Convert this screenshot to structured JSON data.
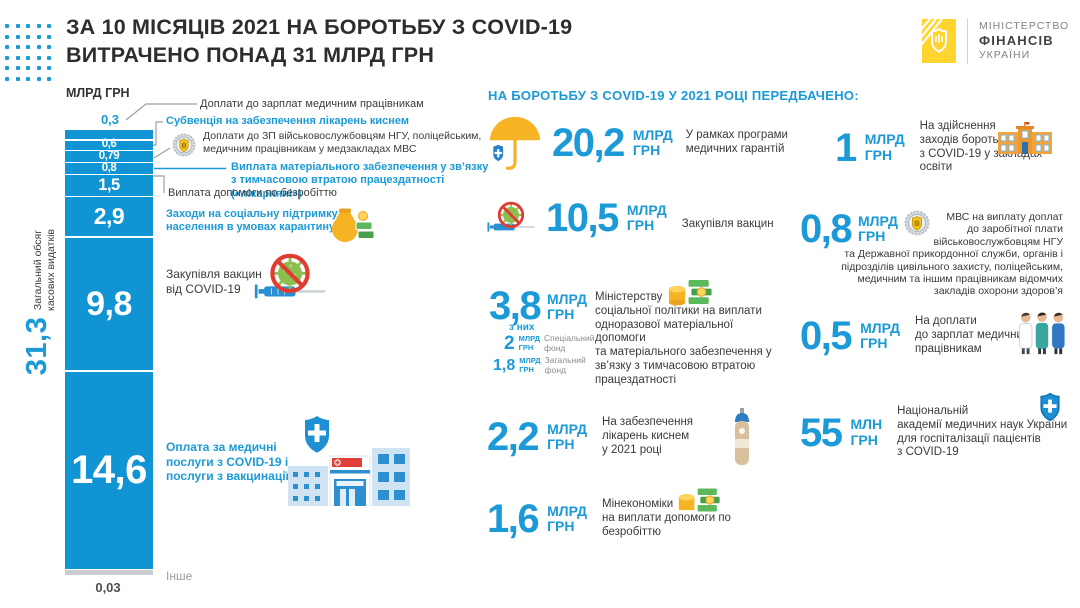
{
  "header": {
    "title": "ЗА 10 МІСЯЦІВ 2021 НА БОРОТЬБУ З COVID-19\nВИТРАЧЕНО ПОНАД 31 МЛРД ГРН",
    "logo": {
      "line1": "МІНІСТЕРСТВО",
      "line2": "ФІНАНСІВ",
      "line3": "УКРАЇНИ"
    }
  },
  "colors": {
    "accent": "#1b9ad7",
    "bar": "#1094d3",
    "red": "#e03c31",
    "yellow": "#f6b425",
    "gray_segment": "#c9cdd1"
  },
  "chart": {
    "unit": "МЛРД ГРН",
    "total_value": "31,3",
    "total_caption": "Загальний обсяг\nкасових видатків",
    "segments": [
      {
        "label": "0,3",
        "value": 0.3,
        "position": "above"
      },
      {
        "label": "0,6",
        "value": 0.6
      },
      {
        "label": "0,79",
        "value": 0.79
      },
      {
        "label": "0,8",
        "value": 0.8
      },
      {
        "label": "1,5",
        "value": 1.5
      },
      {
        "label": "2,9",
        "value": 2.9
      },
      {
        "label": "9,8",
        "value": 9.8
      },
      {
        "label": "14,6",
        "value": 14.6
      },
      {
        "label": "0,03",
        "value": 0.03,
        "position": "below",
        "color": "#c9cdd1"
      }
    ],
    "callouts": {
      "c1": "Доплати до зарплат медичним працівникам",
      "c2": "Субвенція на забезпечення лікарень киснем",
      "c3": "Доплати до ЗП військовослужбовцям НГУ, поліцейським,\nмедичним працівникам у медзакладах МВС",
      "c4": "Виплата матеріального забезпечення у зв’язку\nз тимчасовою втратою працездатності\n(«лікарняні»)",
      "c5": "Виплата допомоги по безробіттю",
      "c6": "Заходи на соціальну підтримку\nнаселення в умовах карантину",
      "c7": "Закупівля вакцин\nвід COVID-19",
      "c8": "Оплата за медичні\nпослуги з COVID-19 і\nпослуги з вакцинації",
      "c9": "Інше"
    }
  },
  "right": {
    "heading": "НА БОРОТЬБУ З COVID-19 У 2021 РОЦІ ПЕРЕДБАЧЕНО:"
  },
  "plans": [
    {
      "amount": "20,2",
      "unit": "МЛРД\nГРН",
      "desc": "У рамках програми\nмедичних гарантій"
    },
    {
      "amount": "10,5",
      "unit": "МЛРД\nГРН",
      "desc": "Закупівля вакцин"
    },
    {
      "amount": "3,8",
      "unit": "МЛРД\nГРН",
      "note": "з них",
      "funds": [
        {
          "amount": "2",
          "unit": "МЛРД\nГРН",
          "label": "Спеціальний\nфонд"
        },
        {
          "amount": "1,8",
          "unit": "МЛРД\nГРН",
          "label": "Загальний\nфонд"
        }
      ],
      "desc": "Міністерству\nсоціальної політики на виплати\nодноразової матеріальної допомоги\nта матеріального забезпечення у\nзв’язку з тимчасовою втратою\nпрацездатності"
    },
    {
      "amount": "2,2",
      "unit": "МЛРД\nГРН",
      "desc": "На забезпечення\nлікарень киснем\nу 2021 році"
    },
    {
      "amount": "1,6",
      "unit": "МЛРД\nГРН",
      "desc": "Мінекономіки\nна виплати допомоги по\nбезробіттю"
    },
    {
      "amount": "1",
      "unit": "МЛРД\nГРН",
      "desc": "На здійснення\nзаходів боротьби\nз COVID-19 у закладах освіти"
    },
    {
      "amount": "0,8",
      "unit": "МЛРД\nГРН",
      "desc": "МВС на виплату доплат\nдо заробітної плати\nвійськовослужбовцям НГУ\nта Державної прикордонної служби, органів і\nпідрозділів цивільного захисту, поліцейським,\nмедичним та іншим працівникам відомчих\nзакладів охорони здоров’я"
    },
    {
      "amount": "0,5",
      "unit": "МЛРД\nГРН",
      "desc": "На доплати\nдо зарплат медичним\nпрацівникам"
    },
    {
      "amount": "55",
      "unit": "МЛН\nГРН",
      "desc": "Національній\nакадемії медичних наук України\nдля госпіталізації пацієнтів\nз COVID-19"
    }
  ],
  "chart_data": {
    "type": "bar",
    "subtype": "single-stacked-column",
    "title": "ЗА 10 МІСЯЦІВ 2021 НА БОРОТЬБУ З COVID-19 ВИТРАЧЕНО ПОНАД 31 МЛРД ГРН",
    "unit": "МЛРД ГРН",
    "total": 31.3,
    "total_caption": "Загальний обсяг касових видатків",
    "segments": [
      {
        "label": "Доплати до зарплат медичним працівникам",
        "value": 0.3
      },
      {
        "label": "Субвенція на забезпечення лікарень киснем",
        "value": 0.6
      },
      {
        "label": "Доплати до ЗП військовослужбовцям НГУ, поліцейським, медичним працівникам у медзакладах МВС",
        "value": 0.79
      },
      {
        "label": "Виплата матеріального забезпечення у зв’язку з тимчасовою втратою працездатності («лікарняні»)",
        "value": 0.8
      },
      {
        "label": "Виплата допомоги по безробіттю",
        "value": 1.5
      },
      {
        "label": "Заходи на соціальну підтримку населення в умовах карантину",
        "value": 2.9
      },
      {
        "label": "Закупівля вакцин від COVID-19",
        "value": 9.8
      },
      {
        "label": "Оплата за медичні послуги з COVID-19 і послуги з вакцинації",
        "value": 14.6
      },
      {
        "label": "Інше",
        "value": 0.03
      }
    ],
    "planned_2021": [
      {
        "amount": 20.2,
        "unit": "МЛРД ГРН",
        "desc": "У рамках програми медичних гарантій"
      },
      {
        "amount": 10.5,
        "unit": "МЛРД ГРН",
        "desc": "Закупівля вакцин"
      },
      {
        "amount": 3.8,
        "unit": "МЛРД ГРН",
        "desc": "Міністерству соціальної політики на виплати одноразової матеріальної допомоги та матеріального забезпечення у зв’язку з тимчасовою втратою працездатності",
        "of_which": [
          {
            "amount": 2,
            "unit": "МЛРД ГРН",
            "label": "Спеціальний фонд"
          },
          {
            "amount": 1.8,
            "unit": "МЛРД ГРН",
            "label": "Загальний фонд"
          }
        ]
      },
      {
        "amount": 2.2,
        "unit": "МЛРД ГРН",
        "desc": "На забезпечення лікарень киснем у 2021 році"
      },
      {
        "amount": 1.6,
        "unit": "МЛРД ГРН",
        "desc": "Мінекономіки на виплати допомоги по безробіттю"
      },
      {
        "amount": 1,
        "unit": "МЛРД ГРН",
        "desc": "На здійснення заходів боротьби з COVID-19 у закладах освіти"
      },
      {
        "amount": 0.8,
        "unit": "МЛРД ГРН",
        "desc": "МВС на виплату доплат до заробітної плати військовослужбовцям НГУ та Державної прикордонної служби, органів і підрозділів цивільного захисту, поліцейським, медичним та іншим працівникам відомчих закладів охорони здоров’я"
      },
      {
        "amount": 0.5,
        "unit": "МЛРД ГРН",
        "desc": "На доплати до зарплат медичним працівникам"
      },
      {
        "amount": 55,
        "unit": "МЛН ГРН",
        "desc": "Національній академії медичних наук України для госпіталізації пацієнтів з COVID-19"
      }
    ]
  }
}
